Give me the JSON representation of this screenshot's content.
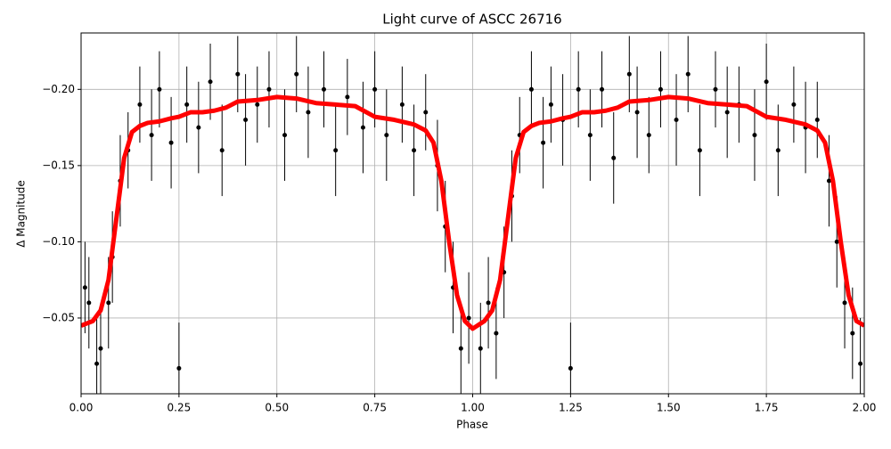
{
  "chart_data": {
    "type": "scatter",
    "title": "Light curve of ASCC 26716",
    "xlabel": "Phase",
    "ylabel": "Δ Magnitude",
    "xlim": [
      0,
      2
    ],
    "ylim": [
      -0.0003,
      -0.237
    ],
    "xticks": [
      {
        "value": 0,
        "label": "0.00"
      },
      {
        "value": 0.25,
        "label": "0.25"
      },
      {
        "value": 0.5,
        "label": "0.50"
      },
      {
        "value": 0.75,
        "label": "0.75"
      },
      {
        "value": 1,
        "label": "1.00"
      },
      {
        "value": 1.25,
        "label": "1.25"
      },
      {
        "value": 1.5,
        "label": "1.50"
      },
      {
        "value": 1.75,
        "label": "1.75"
      },
      {
        "value": 2,
        "label": "2.00"
      }
    ],
    "yticks": [
      {
        "value": -0.05,
        "label": "−0.05"
      },
      {
        "value": -0.1,
        "label": "−0.10"
      },
      {
        "value": -0.15,
        "label": "−0.15"
      },
      {
        "value": -0.2,
        "label": "−0.20"
      }
    ],
    "grid": true,
    "series": [
      {
        "type": "scatter",
        "color": "#000000",
        "x": [
          0.01,
          0.02,
          0.04,
          0.05,
          0.07,
          0.08,
          0.1,
          0.12,
          0.15,
          0.18,
          0.2,
          0.23,
          0.25,
          0.27,
          0.3,
          0.33,
          0.36,
          0.4,
          0.42,
          0.45,
          0.48,
          0.52,
          0.55,
          0.58,
          0.62,
          0.65,
          0.68,
          0.72,
          0.75,
          0.78,
          0.82,
          0.85,
          0.88,
          0.91,
          0.93,
          0.95,
          0.97,
          0.99,
          1.02,
          1.04,
          1.06,
          1.08,
          1.1,
          1.12,
          1.15,
          1.18,
          1.2,
          1.23,
          1.25,
          1.27,
          1.3,
          1.33,
          1.36,
          1.4,
          1.42,
          1.45,
          1.48,
          1.52,
          1.55,
          1.58,
          1.62,
          1.65,
          1.68,
          1.72,
          1.75,
          1.78,
          1.82,
          1.85,
          1.88,
          1.91,
          1.93,
          1.95,
          1.97,
          1.99
        ],
        "values": [
          -0.07,
          -0.06,
          -0.02,
          -0.03,
          -0.06,
          -0.09,
          -0.14,
          -0.16,
          -0.19,
          -0.17,
          -0.2,
          -0.165,
          -0.017,
          -0.19,
          -0.175,
          -0.205,
          -0.16,
          -0.21,
          -0.18,
          -0.19,
          -0.2,
          -0.17,
          -0.21,
          -0.185,
          -0.2,
          -0.16,
          -0.195,
          -0.175,
          -0.2,
          -0.17,
          -0.19,
          -0.16,
          -0.185,
          -0.15,
          -0.11,
          -0.07,
          -0.03,
          -0.05,
          -0.03,
          -0.06,
          -0.04,
          -0.08,
          -0.13,
          -0.17,
          -0.2,
          -0.165,
          -0.19,
          -0.18,
          -0.017,
          -0.2,
          -0.17,
          -0.2,
          -0.155,
          -0.21,
          -0.185,
          -0.17,
          -0.2,
          -0.18,
          -0.21,
          -0.16,
          -0.2,
          -0.185,
          -0.19,
          -0.17,
          -0.205,
          -0.16,
          -0.19,
          -0.175,
          -0.18,
          -0.14,
          -0.1,
          -0.06,
          -0.04,
          -0.02
        ],
        "errors": [
          0.03,
          0.03,
          0.03,
          0.03,
          0.03,
          0.03,
          0.03,
          0.025,
          0.025,
          0.03,
          0.025,
          0.03,
          0.03,
          0.025,
          0.03,
          0.025,
          0.03,
          0.025,
          0.03,
          0.025,
          0.025,
          0.03,
          0.025,
          0.03,
          0.025,
          0.03,
          0.025,
          0.03,
          0.025,
          0.03,
          0.025,
          0.03,
          0.025,
          0.03,
          0.03,
          0.03,
          0.03,
          0.03,
          0.03,
          0.03,
          0.03,
          0.03,
          0.03,
          0.025,
          0.025,
          0.03,
          0.025,
          0.03,
          0.03,
          0.025,
          0.03,
          0.025,
          0.03,
          0.025,
          0.03,
          0.025,
          0.025,
          0.03,
          0.025,
          0.03,
          0.025,
          0.03,
          0.025,
          0.03,
          0.025,
          0.03,
          0.025,
          0.03,
          0.025,
          0.03,
          0.03,
          0.03,
          0.03,
          0.03
        ]
      },
      {
        "type": "line",
        "color": "#ff0000",
        "x": [
          0,
          0.03,
          0.05,
          0.07,
          0.09,
          0.11,
          0.13,
          0.15,
          0.17,
          0.2,
          0.23,
          0.25,
          0.28,
          0.31,
          0.34,
          0.37,
          0.4,
          0.45,
          0.5,
          0.55,
          0.6,
          0.65,
          0.7,
          0.75,
          0.8,
          0.85,
          0.88,
          0.9,
          0.92,
          0.94,
          0.96,
          0.98,
          1,
          1.03,
          1.05,
          1.07,
          1.09,
          1.11,
          1.13,
          1.15,
          1.17,
          1.2,
          1.23,
          1.25,
          1.28,
          1.31,
          1.34,
          1.37,
          1.4,
          1.45,
          1.5,
          1.55,
          1.6,
          1.65,
          1.7,
          1.75,
          1.8,
          1.85,
          1.88,
          1.9,
          1.92,
          1.94,
          1.96,
          1.98,
          2
        ],
        "values": [
          -0.045,
          -0.048,
          -0.055,
          -0.075,
          -0.115,
          -0.155,
          -0.172,
          -0.176,
          -0.178,
          -0.179,
          -0.181,
          -0.182,
          -0.185,
          -0.185,
          -0.186,
          -0.188,
          -0.192,
          -0.193,
          -0.195,
          -0.194,
          -0.191,
          -0.19,
          -0.189,
          -0.182,
          -0.18,
          -0.177,
          -0.173,
          -0.165,
          -0.14,
          -0.1,
          -0.065,
          -0.048,
          -0.043,
          -0.048,
          -0.055,
          -0.075,
          -0.115,
          -0.155,
          -0.172,
          -0.176,
          -0.178,
          -0.179,
          -0.181,
          -0.182,
          -0.185,
          -0.185,
          -0.186,
          -0.188,
          -0.192,
          -0.193,
          -0.195,
          -0.194,
          -0.191,
          -0.19,
          -0.189,
          -0.182,
          -0.18,
          -0.177,
          -0.173,
          -0.165,
          -0.14,
          -0.1,
          -0.065,
          -0.048,
          -0.045
        ]
      }
    ]
  }
}
